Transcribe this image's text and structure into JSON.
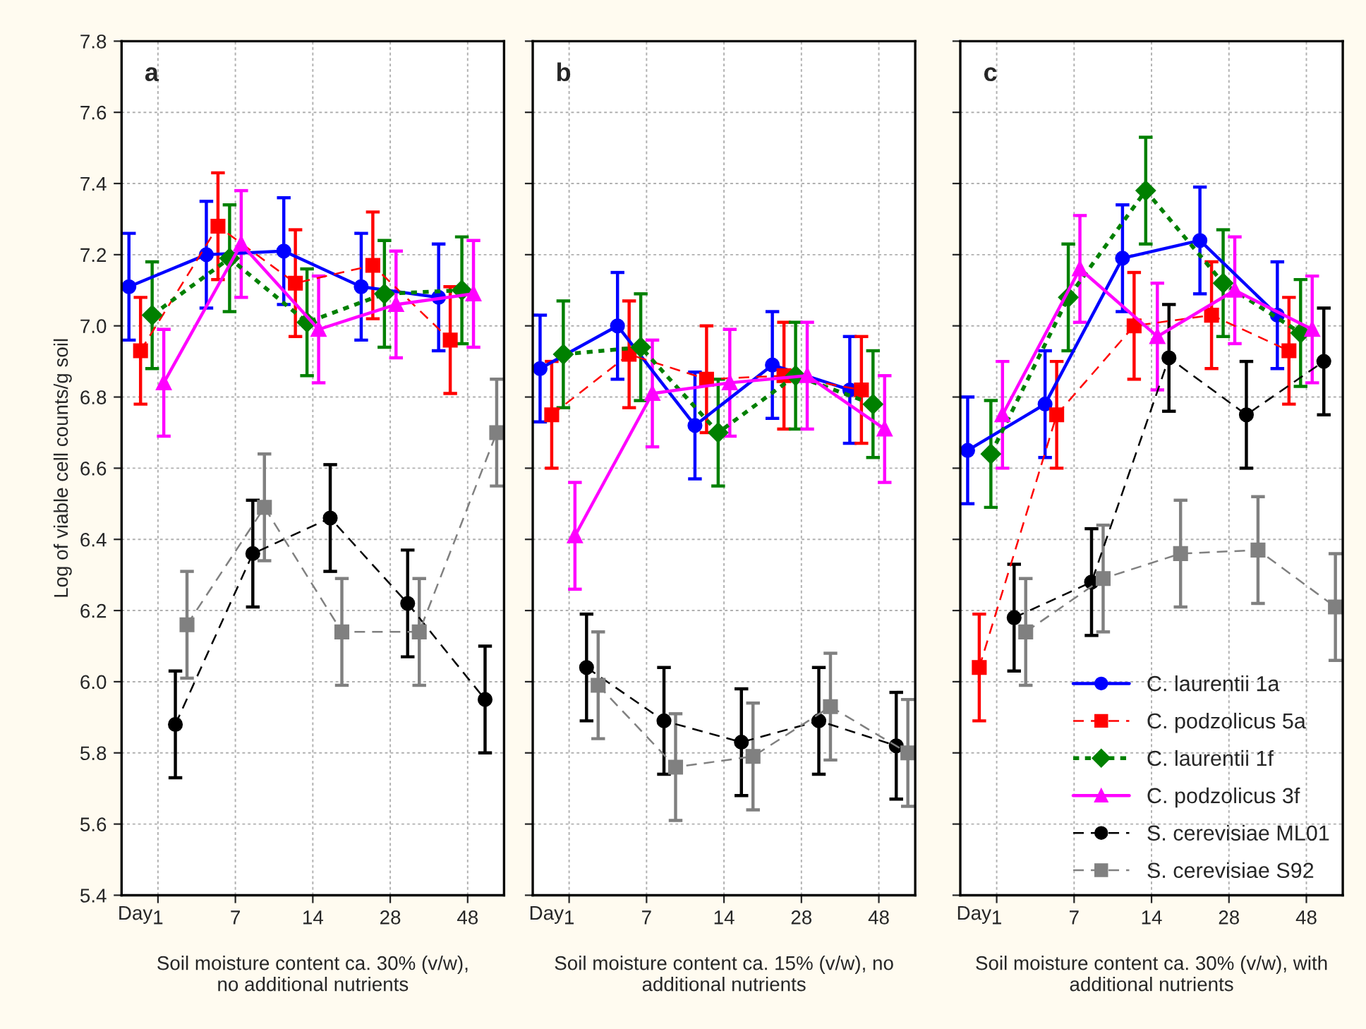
{
  "chart_data": [
    {
      "type": "line",
      "categories": [
        "1",
        "7",
        "14",
        "28",
        "48"
      ],
      "xlabel": "Soil moisture content ca. 30% (v/w),\nno additional nutrients",
      "ylabel": "Log of viable cell counts/g soil",
      "ylim": [
        5.4,
        7.8
      ],
      "yticks": [
        5.4,
        5.6,
        5.8,
        {
          "value": 6,
          "label": "6.0"
        },
        6.2,
        6.4,
        6.6,
        6.8,
        {
          "value": 7,
          "label": "7.0"
        },
        7.2,
        7.4,
        7.6,
        7.8
      ],
      "grid": true,
      "annotations": [
        "a",
        "Day"
      ],
      "series": [
        {
          "color": "#0000ff",
          "marker": "circle",
          "line_style": "solid",
          "values": [
            7.11,
            7.2,
            7.21,
            7.11,
            7.08
          ],
          "errors": [
            0.15,
            0.15,
            0.15,
            0.15,
            0.15
          ]
        },
        {
          "color": "#ff0000",
          "marker": "square",
          "line_style": "dashed",
          "values": [
            6.93,
            7.28,
            7.12,
            7.17,
            6.96
          ],
          "errors": [
            0.15,
            0.15,
            0.15,
            0.15,
            0.15
          ]
        },
        {
          "color": "#008000",
          "marker": "diamond",
          "line_style": "dotted",
          "values": [
            7.03,
            7.19,
            7.01,
            7.09,
            7.1
          ],
          "errors": [
            0.15,
            0.15,
            0.15,
            0.15,
            0.15
          ]
        },
        {
          "color": "#ff00ff",
          "marker": "triangle",
          "line_style": "solid",
          "values": [
            6.84,
            7.23,
            6.99,
            7.06,
            7.09
          ],
          "errors": [
            0.15,
            0.15,
            0.15,
            0.15,
            0.15
          ]
        },
        {
          "color": "#000000",
          "marker": "circle",
          "line_style": "dashed",
          "values": [
            5.88,
            6.36,
            6.46,
            6.22,
            5.95
          ],
          "errors": [
            0.15,
            0.15,
            0.15,
            0.15,
            0.15
          ]
        },
        {
          "color": "#808080",
          "marker": "square",
          "line_style": "dashed",
          "values": [
            6.16,
            6.49,
            6.14,
            6.14,
            6.7
          ],
          "errors": [
            0.15,
            0.15,
            0.15,
            0.15,
            0.15
          ]
        }
      ]
    },
    {
      "type": "line",
      "categories": [
        "1",
        "7",
        "14",
        "28",
        "48"
      ],
      "xlabel": "Soil moisture content ca. 15% (v/w), no\nadditional nutrients",
      "ylim": [
        5.4,
        7.8
      ],
      "yticks": [
        5.4,
        5.6,
        5.8,
        6.0,
        6.2,
        6.4,
        6.6,
        6.8,
        7.0,
        7.2,
        7.4,
        7.6,
        7.8
      ],
      "tick_labels": "x",
      "grid": true,
      "annotations": [
        "b",
        "Day"
      ],
      "series": [
        {
          "color": "#0000ff",
          "marker": "circle",
          "line_style": "solid",
          "values": [
            6.88,
            7.0,
            6.72,
            6.89,
            6.82
          ],
          "errors": [
            0.15,
            0.15,
            0.15,
            0.15,
            0.15
          ]
        },
        {
          "color": "#ff0000",
          "marker": "square",
          "line_style": "dashed",
          "values": [
            6.75,
            6.92,
            6.85,
            6.86,
            6.82
          ],
          "errors": [
            0.15,
            0.15,
            0.15,
            0.15,
            0.15
          ]
        },
        {
          "color": "#008000",
          "marker": "diamond",
          "line_style": "dotted",
          "values": [
            6.92,
            6.94,
            6.7,
            6.86,
            6.78
          ],
          "errors": [
            0.15,
            0.15,
            0.15,
            0.15,
            0.15
          ]
        },
        {
          "color": "#ff00ff",
          "marker": "triangle",
          "line_style": "solid",
          "values": [
            6.41,
            6.81,
            6.84,
            6.86,
            6.71
          ],
          "errors": [
            0.15,
            0.15,
            0.15,
            0.15,
            0.15
          ]
        },
        {
          "color": "#000000",
          "marker": "circle",
          "line_style": "dashed",
          "values": [
            6.04,
            5.89,
            5.83,
            5.89,
            5.82
          ],
          "errors": [
            0.15,
            0.15,
            0.15,
            0.15,
            0.15
          ]
        },
        {
          "color": "#808080",
          "marker": "square",
          "line_style": "dashed",
          "values": [
            5.99,
            5.76,
            5.79,
            5.93,
            5.8
          ],
          "errors": [
            0.15,
            0.15,
            0.15,
            0.15,
            0.15
          ]
        }
      ]
    },
    {
      "type": "line",
      "categories": [
        "1",
        "7",
        "14",
        "28",
        "48"
      ],
      "xlabel": "Soil moisture content ca. 30% (v/w), with\nadditional nutrients",
      "ylim": [
        5.4,
        7.8
      ],
      "yticks": [
        5.4,
        5.6,
        5.8,
        6.0,
        6.2,
        6.4,
        6.6,
        6.8,
        7.0,
        7.2,
        7.4,
        7.6,
        7.8
      ],
      "tick_labels": "x",
      "grid": true,
      "legend": "bottom right",
      "annotations": [
        "c",
        "Day"
      ],
      "series": [
        {
          "name": "C. laurentii 1a",
          "color": "#0000ff",
          "marker": "circle",
          "line_style": "solid",
          "values": [
            6.65,
            6.78,
            7.19,
            7.24,
            7.03
          ],
          "errors": [
            0.15,
            0.15,
            0.15,
            0.15,
            0.15
          ]
        },
        {
          "name": "C. podzolicus 5a",
          "color": "#ff0000",
          "marker": "square",
          "line_style": "dashed",
          "values": [
            6.04,
            6.75,
            7.0,
            7.03,
            6.93
          ],
          "errors": [
            0.15,
            0.15,
            0.15,
            0.15,
            0.15
          ]
        },
        {
          "name": "C. laurentii 1f",
          "color": "#008000",
          "marker": "diamond",
          "line_style": "dotted",
          "values": [
            6.64,
            7.08,
            7.38,
            7.12,
            6.98
          ],
          "errors": [
            0.15,
            0.15,
            0.15,
            0.15,
            0.15
          ]
        },
        {
          "name": "C. podzolicus 3f",
          "color": "#ff00ff",
          "marker": "triangle",
          "line_style": "solid",
          "values": [
            6.75,
            7.16,
            6.97,
            7.1,
            6.99
          ],
          "errors": [
            0.15,
            0.15,
            0.15,
            0.15,
            0.15
          ]
        },
        {
          "name": "S. cerevisiae ML01",
          "color": "#000000",
          "marker": "circle",
          "line_style": "dashed",
          "values": [
            6.18,
            6.28,
            6.91,
            6.75,
            6.9
          ],
          "errors": [
            0.15,
            0.15,
            0.15,
            0.15,
            0.15
          ]
        },
        {
          "name": "S. cerevisiae S92",
          "color": "#808080",
          "marker": "square",
          "line_style": "dashed",
          "values": [
            6.14,
            6.29,
            6.36,
            6.37,
            6.21
          ],
          "errors": [
            0.15,
            0.15,
            0.15,
            0.15,
            0.15
          ]
        }
      ]
    }
  ]
}
